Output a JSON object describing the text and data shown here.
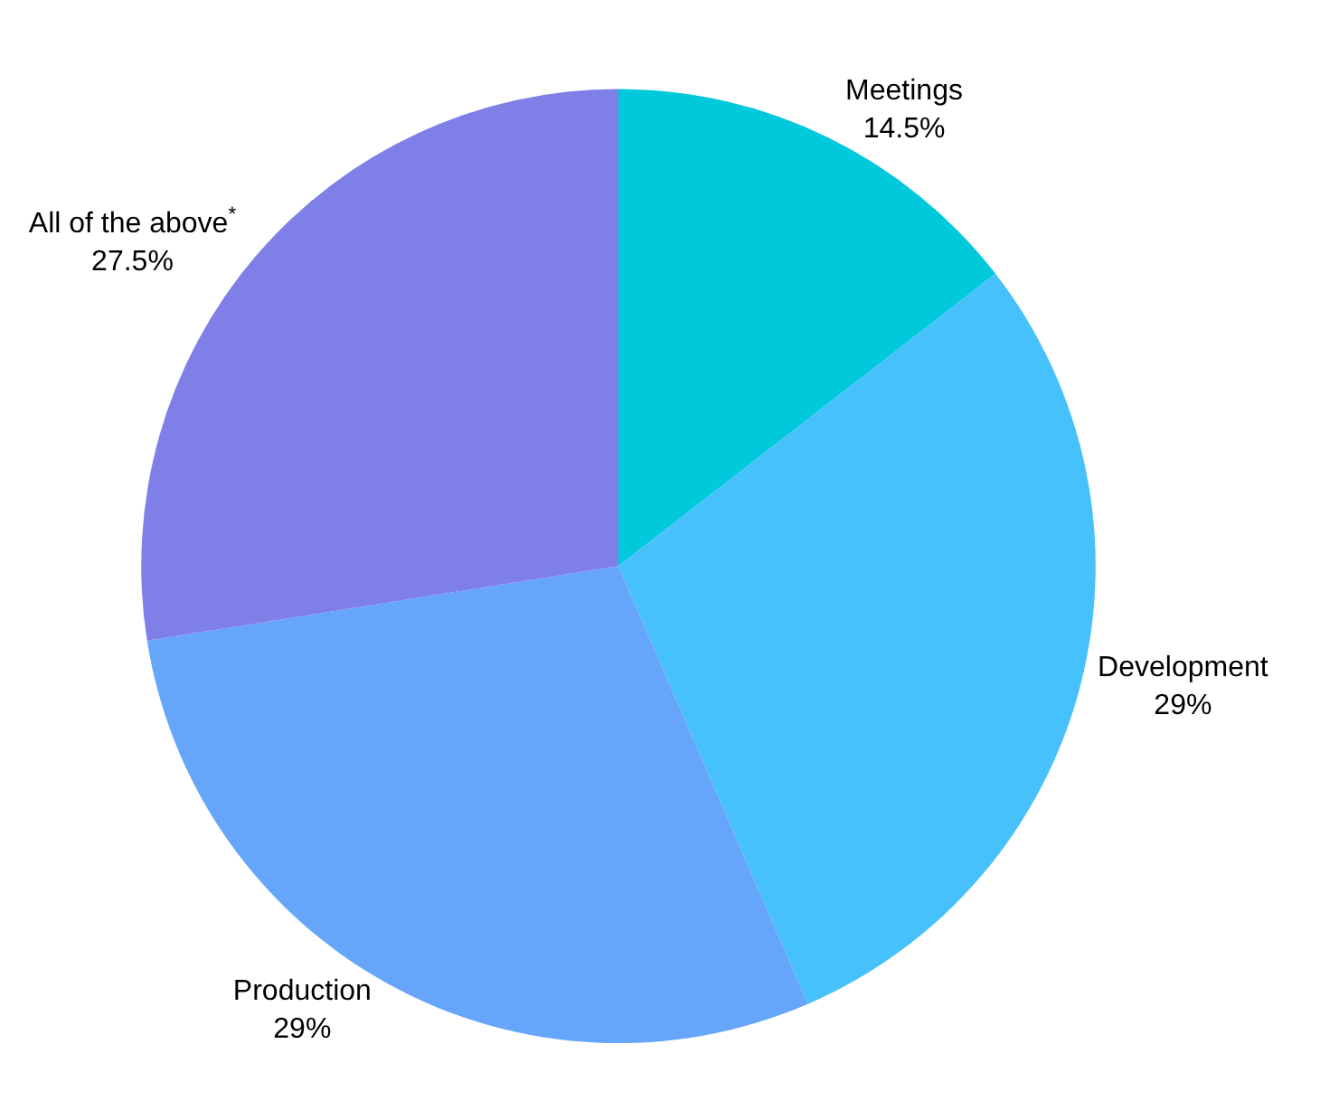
{
  "chart_data": {
    "type": "pie",
    "categories": [
      "Meetings",
      "Development",
      "Production",
      "All of the above$^{*}$"
    ],
    "values": [
      14.5,
      29,
      29,
      27.5
    ],
    "value_labels": [
      "14.5%",
      "29%",
      "29%",
      "27.5%"
    ],
    "colors": [
      "#00c9dc",
      "#47c1fc",
      "#66a6fa",
      "#7e80e7"
    ],
    "legend": false
  }
}
